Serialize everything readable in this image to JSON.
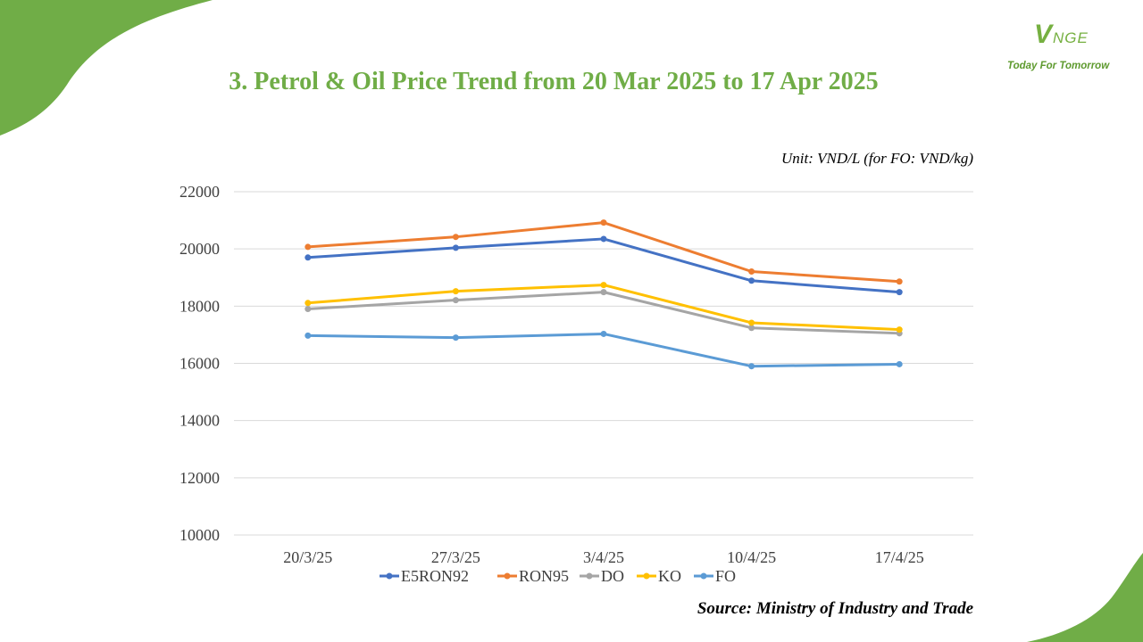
{
  "header": {
    "title": "3. Petrol & Oil Price Trend from 20 Mar 2025 to 17 Apr 2025",
    "unit_note": "Unit: VND/L (for FO: VND/kg)",
    "source": "Source: Ministry of Industry and Trade"
  },
  "logo": {
    "mark_initial": "V",
    "mark_rest": "NGE",
    "tagline": "Today For Tomorrow"
  },
  "colors": {
    "brand_green": "#70ad47",
    "grid": "#d9d9d9"
  },
  "chart_data": {
    "type": "line",
    "categories": [
      "20/3/25",
      "27/3/25",
      "3/4/25",
      "10/4/25",
      "17/4/25"
    ],
    "ylim": [
      10000,
      22000
    ],
    "yticks": [
      10000,
      12000,
      14000,
      16000,
      18000,
      20000,
      22000
    ],
    "grid": true,
    "legend_position": "bottom",
    "series": [
      {
        "name": "E5RON92",
        "color": "#4472c4",
        "values": [
          19700,
          20040,
          20350,
          18890,
          18490
        ]
      },
      {
        "name": "RON95",
        "color": "#ed7d31",
        "values": [
          20070,
          20420,
          20920,
          19210,
          18860
        ]
      },
      {
        "name": "DO",
        "color": "#a5a5a5",
        "values": [
          17900,
          18210,
          18490,
          17240,
          17050
        ]
      },
      {
        "name": "KO",
        "color": "#ffc000",
        "values": [
          18110,
          18520,
          18740,
          17420,
          17180
        ]
      },
      {
        "name": "FO",
        "color": "#5b9bd5",
        "values": [
          16970,
          16900,
          17030,
          15900,
          15970
        ]
      }
    ]
  }
}
